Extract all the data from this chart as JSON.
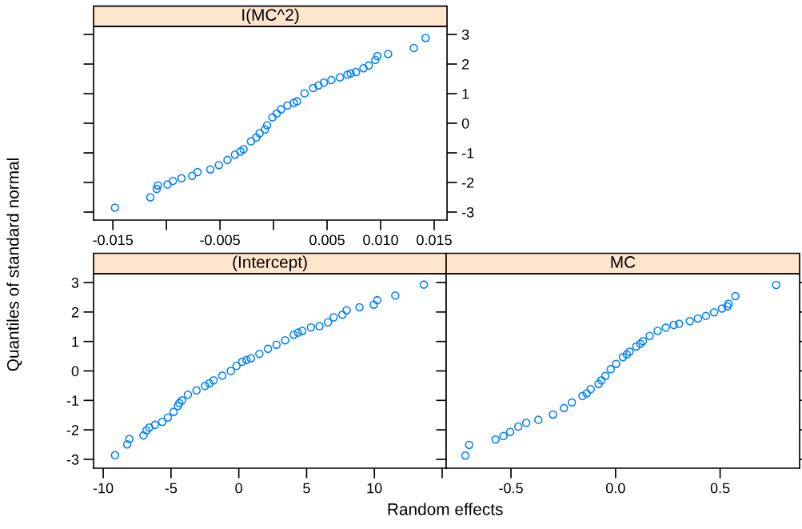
{
  "chart_data": [
    {
      "type": "scatter",
      "title": "I(MC^2)",
      "marker": "circle",
      "grid": false,
      "xlim": [
        -0.0168,
        0.0162
      ],
      "ylim": [
        -3.27,
        3.27
      ],
      "xticks": [
        -0.015,
        {
          "value": -0.01,
          "label": null
        },
        -0.005,
        {
          "value": 0,
          "label": null
        },
        0.005,
        {
          "value": 0.01,
          "label": "0.010"
        },
        0.015
      ],
      "yticks": [
        -3,
        -2,
        -1,
        0,
        1,
        2,
        3
      ],
      "series": [
        {
          "color": "#0080ff",
          "x": [
            -0.0148,
            -0.0115,
            -0.0109,
            -0.0108,
            -0.0099,
            -0.0094,
            -0.0086,
            -0.0076,
            -0.0071,
            -0.0059,
            -0.0051,
            -0.0043,
            -0.0036,
            -0.0031,
            -0.0028,
            -0.0021,
            -0.0016,
            -0.0013,
            -0.0008,
            -0.0006,
            -0.0001,
            0.0003,
            0.0007,
            0.0013,
            0.0019,
            0.0022,
            0.0029,
            0.0037,
            0.0042,
            0.0047,
            0.0054,
            0.0062,
            0.0069,
            0.0072,
            0.0077,
            0.0084,
            0.0089,
            0.0095,
            0.0097,
            0.0107,
            0.0131,
            0.0142
          ],
          "values": [
            -2.85,
            -2.5,
            -2.22,
            -2.1,
            -2.07,
            -1.95,
            -1.86,
            -1.78,
            -1.65,
            -1.56,
            -1.41,
            -1.24,
            -1.06,
            -0.95,
            -0.88,
            -0.61,
            -0.48,
            -0.34,
            -0.21,
            -0.07,
            0.2,
            0.33,
            0.47,
            0.6,
            0.69,
            0.74,
            1.01,
            1.19,
            1.28,
            1.37,
            1.46,
            1.55,
            1.64,
            1.68,
            1.73,
            1.86,
            1.95,
            2.14,
            2.27,
            2.34,
            2.54,
            2.88
          ]
        }
      ]
    },
    {
      "type": "scatter",
      "title": "(Intercept)",
      "marker": "circle",
      "grid": false,
      "xlabel": "Random effects",
      "ylabel": "Quantiles of standard normal",
      "xlim": [
        -10.71,
        15.3
      ],
      "ylim": [
        -3.3,
        3.3
      ],
      "xticks": [
        -10,
        -5,
        0,
        5,
        10,
        {
          "value": 15,
          "label": null
        }
      ],
      "yticks": [
        -3,
        -2,
        -1,
        0,
        1,
        2,
        3
      ],
      "series": [
        {
          "color": "#0080ff",
          "x": [
            -9.13,
            -8.23,
            -8.08,
            -7.03,
            -6.81,
            -6.6,
            -6.18,
            -5.65,
            -5.23,
            -4.81,
            -4.49,
            -4.39,
            -4.18,
            -3.76,
            -3.12,
            -2.49,
            -2.17,
            -1.86,
            -1.22,
            -0.59,
            -0.17,
            0.25,
            0.57,
            0.89,
            1.52,
            2.15,
            2.78,
            3.42,
            4.05,
            4.37,
            4.68,
            5.32,
            5.95,
            6.58,
            7.0,
            7.64,
            7.95,
            8.9,
            9.96,
            10.21,
            11.54,
            13.65
          ],
          "values": [
            -2.86,
            -2.49,
            -2.31,
            -2.19,
            -2.02,
            -1.92,
            -1.83,
            -1.73,
            -1.58,
            -1.39,
            -1.19,
            -1.09,
            -1.0,
            -0.81,
            -0.66,
            -0.51,
            -0.42,
            -0.32,
            -0.16,
            0.0,
            0.17,
            0.31,
            0.37,
            0.43,
            0.58,
            0.75,
            0.89,
            1.04,
            1.23,
            1.3,
            1.36,
            1.48,
            1.52,
            1.65,
            1.82,
            1.91,
            2.06,
            2.16,
            2.25,
            2.4,
            2.56,
            2.93
          ]
        }
      ]
    },
    {
      "type": "scatter",
      "title": "MC",
      "marker": "circle",
      "grid": false,
      "tick_labels": "x",
      "xlim": [
        -0.81,
        0.88
      ],
      "ylim": [
        -3.3,
        3.3
      ],
      "xticks": [
        {
          "value": -0.5,
          "label": "-0.5"
        },
        {
          "value": 0,
          "label": "0.0"
        },
        0.5
      ],
      "yticks": [
        -3,
        -2,
        -1,
        0,
        1,
        2,
        3
      ],
      "series": [
        {
          "color": "#0080ff",
          "x": [
            -0.718,
            -0.7,
            -0.574,
            -0.536,
            -0.504,
            -0.465,
            -0.427,
            -0.369,
            -0.299,
            -0.247,
            -0.209,
            -0.158,
            -0.138,
            -0.119,
            -0.081,
            -0.068,
            -0.049,
            -0.023,
            0.003,
            0.035,
            0.054,
            0.067,
            0.099,
            0.118,
            0.131,
            0.163,
            0.201,
            0.24,
            0.278,
            0.304,
            0.355,
            0.394,
            0.432,
            0.471,
            0.509,
            0.535,
            0.541,
            0.573,
            0.768
          ],
          "values": [
            -2.87,
            -2.51,
            -2.33,
            -2.21,
            -2.07,
            -1.89,
            -1.76,
            -1.66,
            -1.48,
            -1.26,
            -1.07,
            -0.85,
            -0.76,
            -0.62,
            -0.44,
            -0.32,
            -0.17,
            0.06,
            0.24,
            0.47,
            0.56,
            0.65,
            0.83,
            0.92,
            1.01,
            1.19,
            1.36,
            1.47,
            1.56,
            1.6,
            1.69,
            1.78,
            1.87,
            1.99,
            2.12,
            2.19,
            2.28,
            2.54,
            2.92
          ]
        }
      ]
    }
  ]
}
